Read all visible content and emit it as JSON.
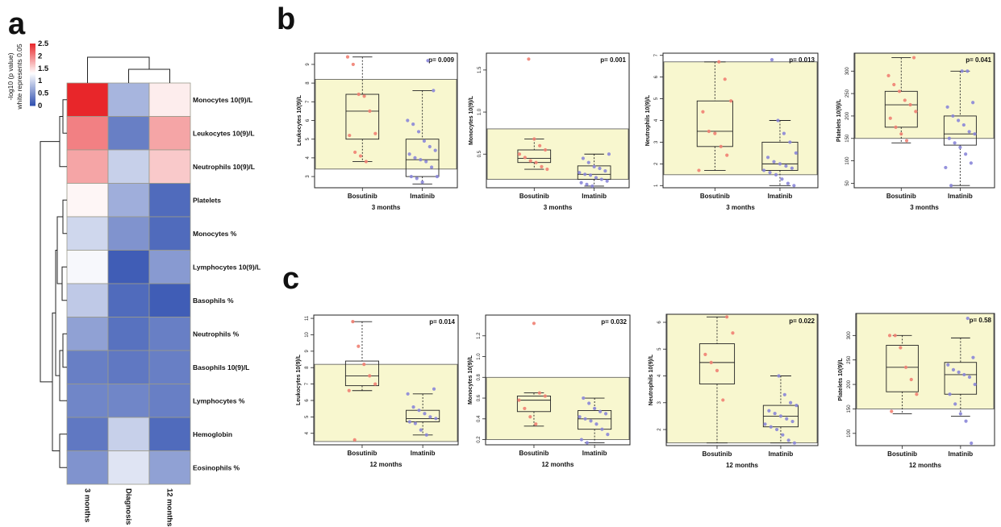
{
  "panels": {
    "a": "a",
    "b": "b",
    "c": "c"
  },
  "colors": {
    "high": "#e8262a",
    "low": "#3050b0",
    "mid": "#ffffff",
    "band": "#f8f7cf",
    "bosutinib": "#ef7f72",
    "imatinib": "#8a86d8"
  },
  "chart_data": [
    {
      "type": "heatmap",
      "title": "",
      "colorbar_title": "-log10 (p value)",
      "colorbar_subtitle": "white represents 0.05",
      "colorbar_range": [
        0,
        2.5
      ],
      "colorbar_ticks": [
        "2.5",
        "2",
        "1.5",
        "1",
        "0.5",
        "0"
      ],
      "columns": [
        "3 months",
        "Diagnosis",
        "12 months"
      ],
      "rows": [
        "Monocytes 10(9)/L",
        "Leukocytes 10(9)/L",
        "Neutrophils 10(9)/L",
        "Platelets",
        "Monocytes %",
        "Lymphocytes 10(9)/L",
        "Basophils %",
        "Neutrophils %",
        "Basophils 10(9)/L",
        "Lymphocytes %",
        "Hemoglobin",
        "Eosinophils %"
      ],
      "values": [
        [
          2.5,
          0.75,
          1.4
        ],
        [
          2.0,
          0.35,
          1.8
        ],
        [
          1.8,
          0.95,
          1.6
        ],
        [
          1.35,
          0.7,
          0.2
        ],
        [
          1.0,
          0.5,
          0.2
        ],
        [
          1.25,
          0.1,
          0.55
        ],
        [
          0.9,
          0.2,
          0.1
        ],
        [
          0.6,
          0.25,
          0.35
        ],
        [
          0.35,
          0.3,
          0.35
        ],
        [
          0.4,
          0.4,
          0.35
        ],
        [
          0.3,
          0.95,
          0.2
        ],
        [
          0.5,
          1.1,
          0.6
        ]
      ]
    },
    {
      "type": "box",
      "panel": "b",
      "ylabel": "Leukocytes 10(9)/L",
      "xlabel": "3 months",
      "p": "p= 0.009",
      "ylim": [
        2.4,
        9.6
      ],
      "yticks": [
        3,
        4,
        5,
        6,
        7,
        8,
        9
      ],
      "band": [
        3.4,
        8.2
      ],
      "categories": [
        "Bosutinib",
        "Imatinib"
      ],
      "box": [
        {
          "min": 3.8,
          "q1": 5.0,
          "median": 6.5,
          "q3": 7.4,
          "max": 9.4
        },
        {
          "min": 2.6,
          "q1": 3.0,
          "median": 3.9,
          "q3": 5.0,
          "max": 7.6
        }
      ],
      "points": [
        [
          9.4,
          9.0,
          7.4,
          7.3,
          6.5,
          5.3,
          5.2,
          4.3,
          4.1,
          3.8
        ],
        [
          9.2,
          7.6,
          6.0,
          5.8,
          5.4,
          4.9,
          4.6,
          4.4,
          4.2,
          4.0,
          3.9,
          3.8,
          3.5,
          3.0,
          3.0,
          2.9,
          2.7
        ]
      ]
    },
    {
      "type": "box",
      "panel": "b",
      "ylabel": "Monocytes 10(9)/L",
      "xlabel": "3 months",
      "p": "p= 0.001",
      "ylim": [
        0.1,
        1.7
      ],
      "yticks": [
        0.5,
        1.0,
        1.5
      ],
      "ytick_labels": [
        "0.5",
        "1.0",
        "1.5"
      ],
      "band": [
        0.2,
        0.8
      ],
      "categories": [
        "Bosutinib",
        "Imatinib"
      ],
      "box": [
        {
          "min": 0.32,
          "q1": 0.4,
          "median": 0.45,
          "q3": 0.55,
          "max": 0.68
        },
        {
          "min": 0.12,
          "q1": 0.2,
          "median": 0.26,
          "q3": 0.36,
          "max": 0.5
        }
      ],
      "points": [
        [
          1.63,
          0.68,
          0.6,
          0.55,
          0.5,
          0.46,
          0.42,
          0.4,
          0.35,
          0.32
        ],
        [
          0.5,
          0.45,
          0.4,
          0.35,
          0.33,
          0.3,
          0.28,
          0.26,
          0.25,
          0.22,
          0.2,
          0.18,
          0.16,
          0.14,
          0.12
        ]
      ]
    },
    {
      "type": "box",
      "panel": "b",
      "ylabel": "Neutrophils 10(9)/L",
      "xlabel": "3 months",
      "p": "p= 0.013",
      "ylim": [
        0.9,
        7.1
      ],
      "yticks": [
        1,
        2,
        3,
        4,
        5,
        6,
        7
      ],
      "band": [
        1.5,
        6.7
      ],
      "categories": [
        "Bosutinib",
        "Imatinib"
      ],
      "box": [
        {
          "min": 1.7,
          "q1": 2.8,
          "median": 3.5,
          "q3": 4.9,
          "max": 6.7
        },
        {
          "min": 1.0,
          "q1": 1.7,
          "median": 2.0,
          "q3": 3.0,
          "max": 4.0
        }
      ],
      "points": [
        [
          6.7,
          5.9,
          4.9,
          4.4,
          3.5,
          3.4,
          2.8,
          2.4,
          1.7
        ],
        [
          6.8,
          4.0,
          3.4,
          3.0,
          2.5,
          2.3,
          2.1,
          2.0,
          1.9,
          1.8,
          1.7,
          1.6,
          1.5,
          1.3,
          1.1,
          1.0
        ]
      ]
    },
    {
      "type": "box",
      "panel": "b",
      "ylabel": "Platelets 10(9)/L",
      "xlabel": "3 months",
      "p": "p= 0.041",
      "ylim": [
        40,
        340
      ],
      "yticks": [
        50,
        100,
        150,
        200,
        250,
        300
      ],
      "band": [
        150,
        340
      ],
      "categories": [
        "Bosutinib",
        "Imatinib"
      ],
      "box": [
        {
          "min": 140,
          "q1": 175,
          "median": 225,
          "q3": 255,
          "max": 330
        },
        {
          "min": 45,
          "q1": 135,
          "median": 160,
          "q3": 200,
          "max": 300
        }
      ],
      "points": [
        [
          330,
          290,
          270,
          255,
          235,
          225,
          210,
          195,
          175,
          160,
          145
        ],
        [
          300,
          300,
          230,
          220,
          200,
          190,
          180,
          165,
          160,
          150,
          140,
          130,
          115,
          95,
          85,
          45
        ]
      ]
    },
    {
      "type": "box",
      "panel": "c",
      "ylabel": "Leukocytes 10(9)/L",
      "xlabel": "12 months",
      "p": "p= 0.014",
      "ylim": [
        3.3,
        11.2
      ],
      "yticks": [
        4,
        5,
        6,
        7,
        8,
        9,
        10,
        11
      ],
      "band": [
        3.5,
        8.2
      ],
      "categories": [
        "Bosutinib",
        "Imatinib"
      ],
      "box": [
        {
          "min": 6.6,
          "q1": 6.9,
          "median": 7.5,
          "q3": 8.4,
          "max": 10.8
        },
        {
          "min": 3.9,
          "q1": 4.7,
          "median": 4.9,
          "q3": 5.4,
          "max": 6.4
        }
      ],
      "points": [
        [
          10.8,
          9.3,
          8.2,
          7.5,
          7.0,
          6.6,
          3.6
        ],
        [
          6.7,
          6.4,
          5.6,
          5.4,
          5.2,
          5.0,
          4.9,
          4.7,
          4.6,
          4.2,
          3.9
        ]
      ]
    },
    {
      "type": "box",
      "panel": "c",
      "ylabel": "Monocytes 10(9)/L",
      "xlabel": "12 months",
      "p": "p= 0.032",
      "ylim": [
        0.15,
        1.4
      ],
      "yticks": [
        0.2,
        0.4,
        0.6,
        0.8,
        1.0,
        1.2
      ],
      "ytick_labels": [
        "0.2",
        "0.4",
        "0.6",
        "0.8",
        "1.0",
        "1.2"
      ],
      "band": [
        0.2,
        0.8
      ],
      "categories": [
        "Bosutinib",
        "Imatinib"
      ],
      "box": [
        {
          "min": 0.33,
          "q1": 0.47,
          "median": 0.58,
          "q3": 0.62,
          "max": 0.65
        },
        {
          "min": 0.17,
          "q1": 0.3,
          "median": 0.4,
          "q3": 0.48,
          "max": 0.6
        }
      ],
      "points": [
        [
          1.32,
          0.65,
          0.62,
          0.58,
          0.5,
          0.42,
          0.35
        ],
        [
          0.6,
          0.55,
          0.5,
          0.47,
          0.45,
          0.42,
          0.4,
          0.38,
          0.35,
          0.3,
          0.25,
          0.2,
          0.17
        ]
      ]
    },
    {
      "type": "box",
      "panel": "c",
      "ylabel": "Neutrophils 10(9)/L",
      "xlabel": "12 months",
      "p": "p= 0.022",
      "ylim": [
        1.4,
        6.3
      ],
      "yticks": [
        2,
        3,
        4,
        5,
        6
      ],
      "band": [
        1.5,
        6.3
      ],
      "categories": [
        "Bosutinib",
        "Imatinib"
      ],
      "box": [
        {
          "min": 1.5,
          "q1": 3.7,
          "median": 4.5,
          "q3": 5.2,
          "max": 6.2
        },
        {
          "min": 1.5,
          "q1": 2.1,
          "median": 2.5,
          "q3": 2.9,
          "max": 4.0
        }
      ],
      "points": [
        [
          6.2,
          5.6,
          4.8,
          4.5,
          4.2,
          3.1
        ],
        [
          4.0,
          3.3,
          3.0,
          2.9,
          2.7,
          2.6,
          2.5,
          2.4,
          2.3,
          2.2,
          2.1,
          2.0,
          1.8,
          1.6,
          1.5
        ]
      ]
    },
    {
      "type": "box",
      "panel": "c",
      "ylabel": "Platelets 10(9)/L",
      "xlabel": "12 months",
      "p": "p= 0.58",
      "ylim": [
        75,
        345
      ],
      "yticks": [
        100,
        150,
        200,
        250,
        300
      ],
      "band": [
        150,
        345
      ],
      "categories": [
        "Bosutinib",
        "Imatinib"
      ],
      "box": [
        {
          "min": 140,
          "q1": 185,
          "median": 235,
          "q3": 280,
          "max": 300
        },
        {
          "min": 135,
          "q1": 180,
          "median": 220,
          "q3": 245,
          "max": 295
        }
      ],
      "points": [
        [
          300,
          300,
          275,
          235,
          210,
          180,
          145
        ],
        [
          335,
          255,
          240,
          230,
          225,
          220,
          215,
          200,
          180,
          160,
          140,
          125,
          80
        ]
      ]
    }
  ]
}
